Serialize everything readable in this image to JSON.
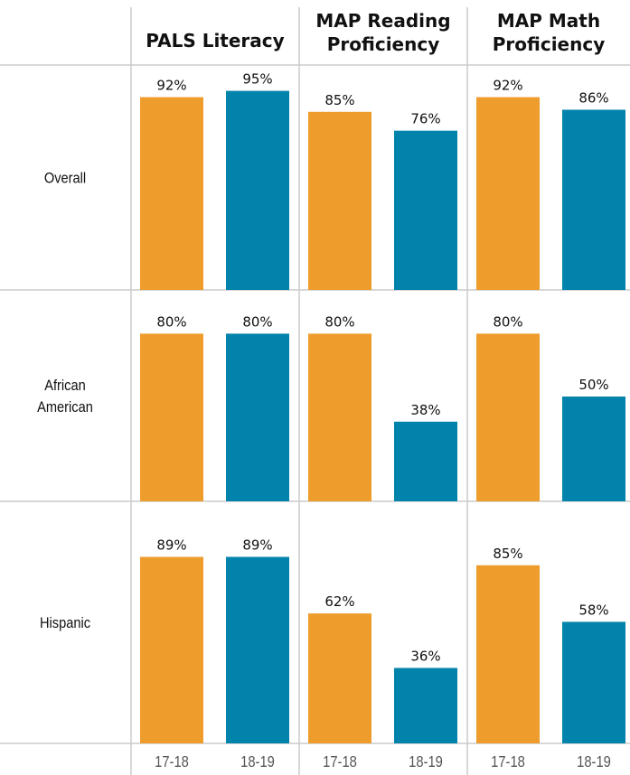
{
  "chart_data": {
    "type": "bar",
    "panels": [
      "PALS Literacy",
      "MAP Reading Proficiency",
      "MAP Math Proficiency"
    ],
    "panel_title_lines": [
      [
        "PALS Literacy"
      ],
      [
        "MAP Reading",
        "Proficiency"
      ],
      [
        "MAP Math",
        "Proficiency"
      ]
    ],
    "rows": [
      {
        "label": "Overall",
        "label_lines": [
          "Overall"
        ]
      },
      {
        "label": "African American",
        "label_lines": [
          "African",
          "American"
        ]
      },
      {
        "label": "Hispanic",
        "label_lines": [
          "Hispanic"
        ]
      }
    ],
    "categories": [
      "17-18",
      "18-19"
    ],
    "category_labels": [
      "17-18",
      "18-19"
    ],
    "series": [
      {
        "name": "17-18",
        "color": "#EE9C2C"
      },
      {
        "name": "18-19",
        "color": "#0283AB"
      }
    ],
    "values": [
      [
        [
          92,
          95
        ],
        [
          85,
          76
        ],
        [
          92,
          86
        ]
      ],
      [
        [
          80,
          80
        ],
        [
          80,
          38
        ],
        [
          80,
          50
        ]
      ],
      [
        [
          89,
          89
        ],
        [
          62,
          36
        ],
        [
          85,
          58
        ]
      ]
    ],
    "value_labels": [
      [
        [
          "92%",
          "95%"
        ],
        [
          "85%",
          "76%"
        ],
        [
          "92%",
          "86%"
        ]
      ],
      [
        [
          "80%",
          "80%"
        ],
        [
          "80%",
          "38%"
        ],
        [
          "80%",
          "50%"
        ]
      ],
      [
        [
          "89%",
          "89%"
        ],
        [
          "62%",
          "36%"
        ],
        [
          "85%",
          "58%"
        ]
      ]
    ],
    "unit": "%",
    "grid": false
  }
}
